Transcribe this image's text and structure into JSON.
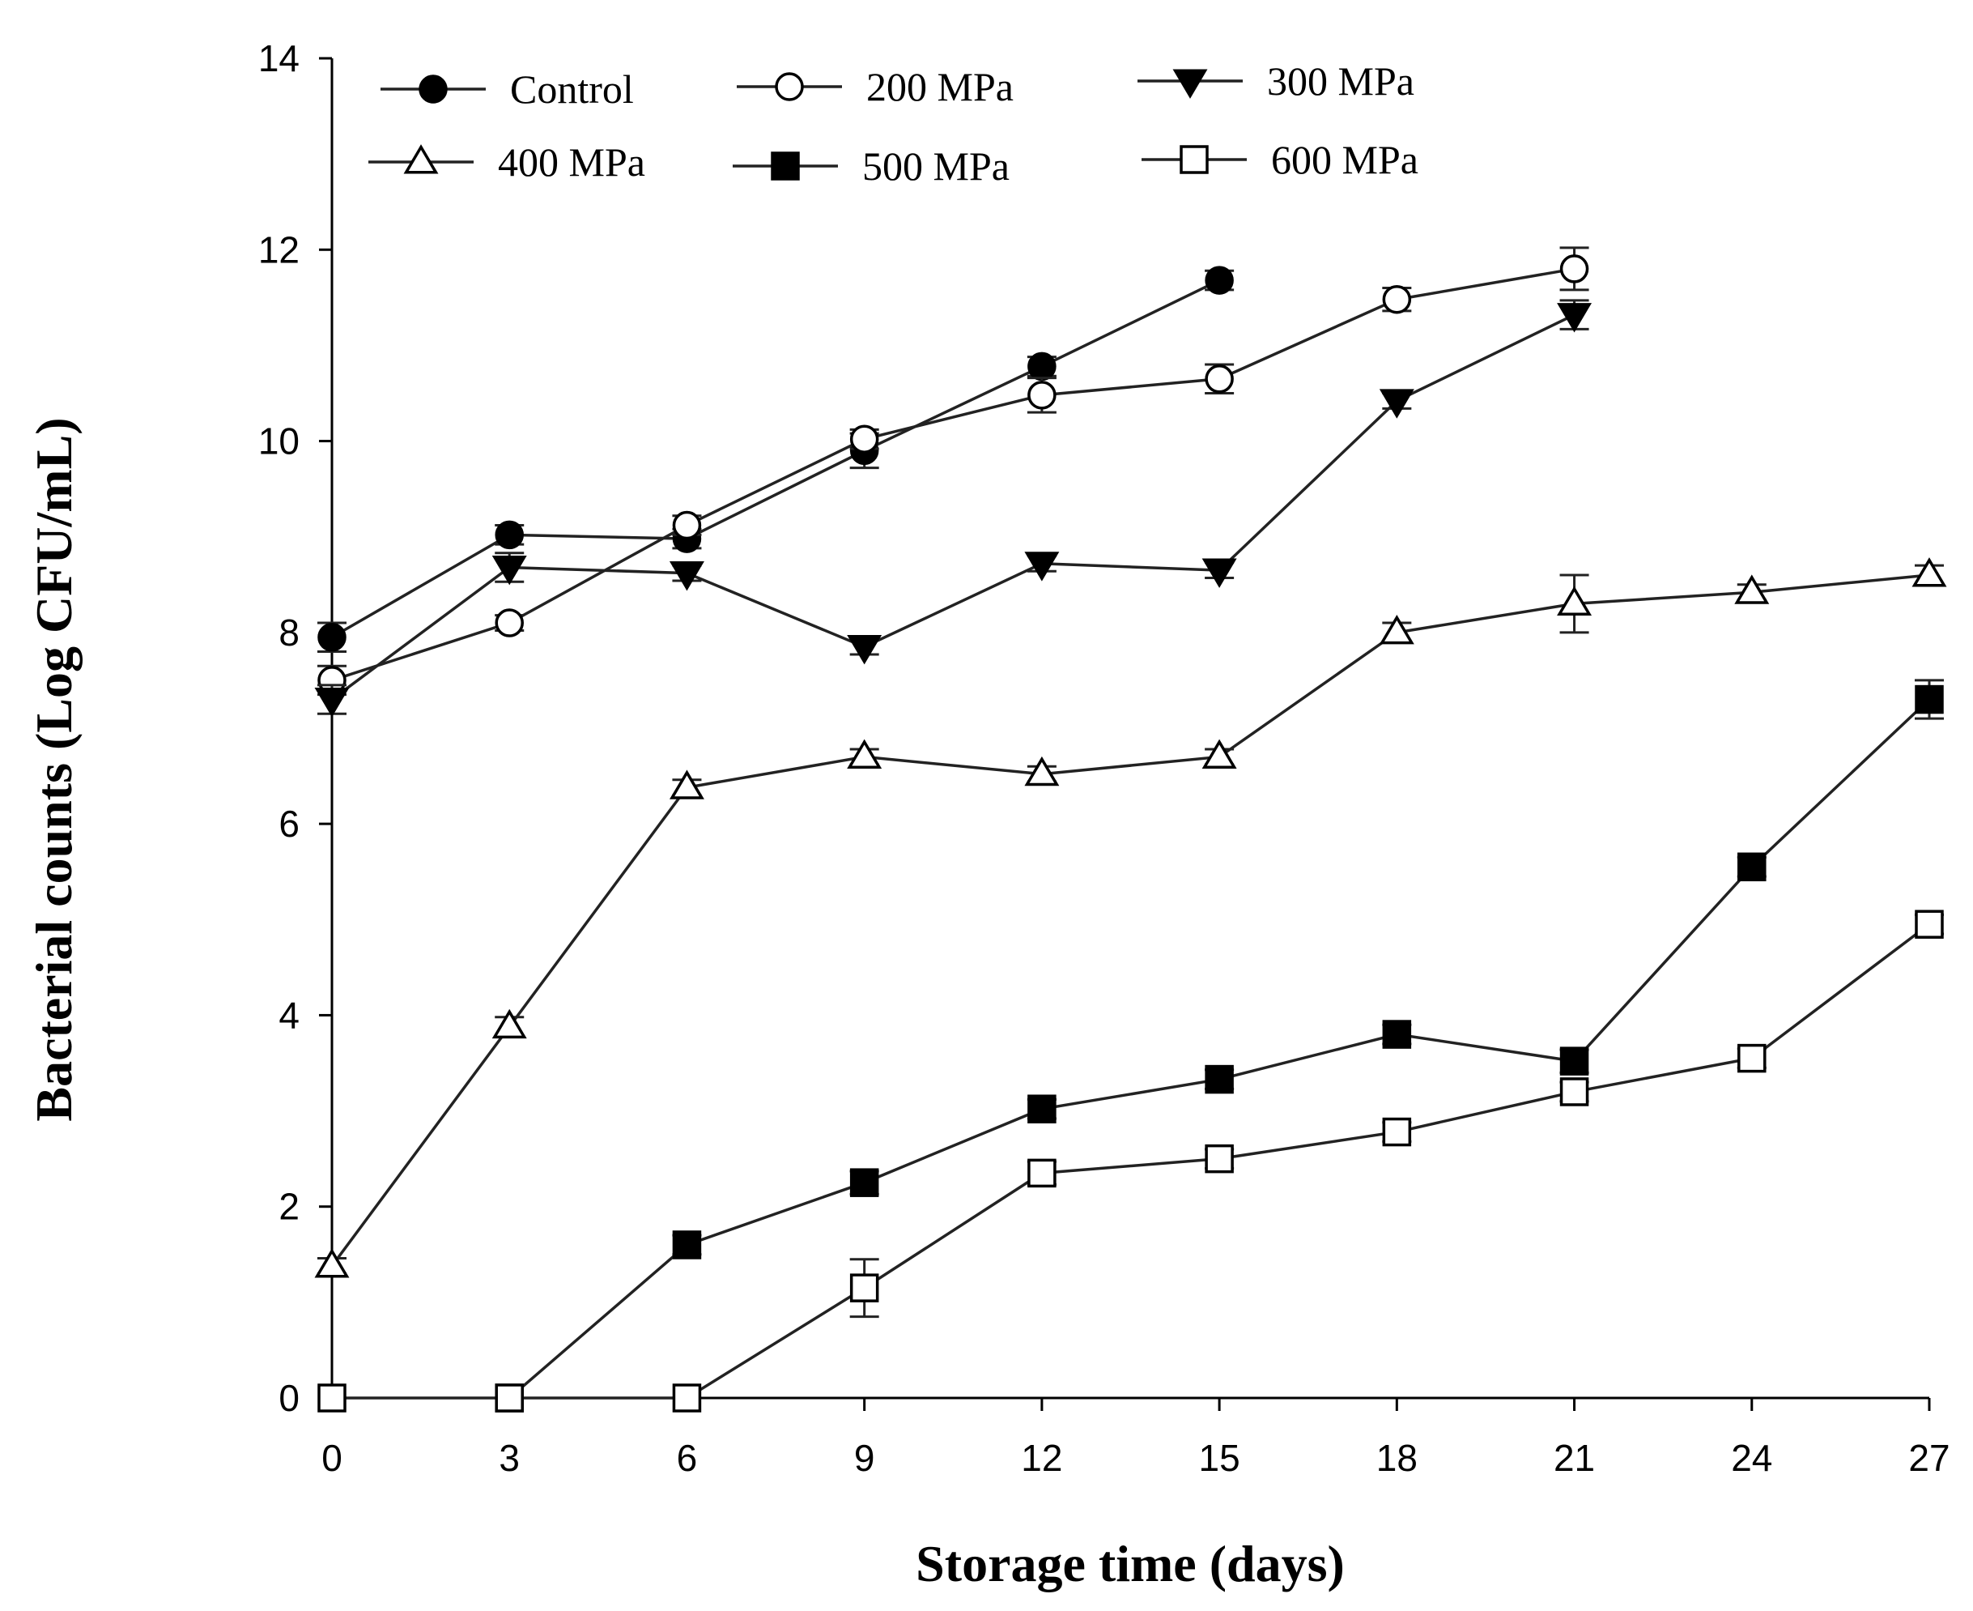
{
  "chart_data": {
    "type": "line",
    "title": "",
    "xlabel": "Storage time (days)",
    "ylabel": "Bacterial counts (Log CFU/mL)",
    "xlim": [
      0,
      27
    ],
    "ylim": [
      0,
      14
    ],
    "xticks": [
      0,
      3,
      6,
      9,
      12,
      15,
      18,
      21,
      24,
      27
    ],
    "yticks": [
      0,
      2,
      4,
      6,
      8,
      10,
      12,
      14
    ],
    "grid": false,
    "legend_position": "top",
    "series": [
      {
        "name": "Control",
        "marker": "circle",
        "filled": true,
        "x": [
          0,
          3,
          6,
          9,
          12,
          15
        ],
        "y": [
          7.95,
          9.02,
          8.98,
          9.9,
          10.78,
          11.68
        ],
        "err": [
          0.15,
          0.1,
          0.1,
          0.18,
          0.1,
          0.1
        ]
      },
      {
        "name": "200 MPa",
        "marker": "circle",
        "filled": false,
        "x": [
          0,
          3,
          6,
          9,
          12,
          15,
          18,
          21
        ],
        "y": [
          7.5,
          8.1,
          9.12,
          10.02,
          10.48,
          10.65,
          11.48,
          11.8
        ],
        "err": [
          0.15,
          0.08,
          0.1,
          0.1,
          0.18,
          0.15,
          0.12,
          0.22
        ]
      },
      {
        "name": "300 MPa",
        "marker": "triangle-down",
        "filled": true,
        "x": [
          0,
          3,
          6,
          9,
          12,
          15,
          18,
          21
        ],
        "y": [
          7.3,
          8.68,
          8.62,
          7.85,
          8.72,
          8.65,
          10.42,
          11.32
        ],
        "err": [
          0.15,
          0.15,
          0.08,
          0.08,
          0.08,
          0.08,
          0.08,
          0.15
        ]
      },
      {
        "name": "400 MPa",
        "marker": "triangle-up",
        "filled": false,
        "x": [
          0,
          3,
          6,
          9,
          12,
          15,
          18,
          21,
          24,
          27
        ],
        "y": [
          1.38,
          3.88,
          6.38,
          6.7,
          6.52,
          6.7,
          8.0,
          8.3,
          8.42,
          8.6
        ],
        "err": [
          0.08,
          0.1,
          0.08,
          0.08,
          0.08,
          0.08,
          0.1,
          0.3,
          0.08,
          0.1
        ]
      },
      {
        "name": "500 MPa",
        "marker": "square",
        "filled": true,
        "x": [
          3,
          6,
          9,
          12,
          15,
          18,
          21,
          24,
          27
        ],
        "y": [
          0,
          1.6,
          2.25,
          3.02,
          3.33,
          3.8,
          3.52,
          5.55,
          7.3
        ],
        "err": [
          0,
          0.1,
          0.12,
          0.1,
          0.1,
          0.1,
          0.12,
          0.1,
          0.2
        ]
      },
      {
        "name": "600 MPa",
        "marker": "square",
        "filled": false,
        "x": [
          0,
          3,
          6,
          9,
          12,
          15,
          18,
          21,
          24,
          27
        ],
        "y": [
          0,
          0,
          0,
          1.15,
          2.35,
          2.5,
          2.78,
          3.2,
          3.55,
          4.95
        ],
        "err": [
          0,
          0,
          0,
          0.3,
          0.12,
          0.1,
          0.1,
          0.1,
          0.1,
          0.1
        ]
      }
    ]
  }
}
